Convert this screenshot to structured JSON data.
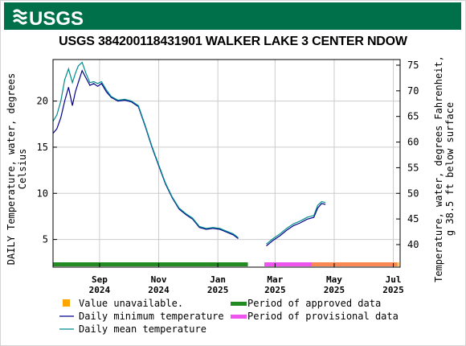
{
  "banner": {
    "logo_text": "USGS",
    "color": "#00704a"
  },
  "chart_data": {
    "type": "line",
    "title": "USGS 384200118431901 WALKER LAKE 3 CENTER NDOW",
    "ylabel": [
      "DAILY Temperature, water, degrees",
      "Celsius"
    ],
    "y2label": [
      "Temperature, water, degrees Fahrenheit,",
      "g 38.5 ft below surface"
    ],
    "ylim": [
      2,
      24.5
    ],
    "y2lim": [
      35.6,
      76.1
    ],
    "xlim": [
      "2024-07-15",
      "2025-07-08"
    ],
    "yticks": [
      5,
      10,
      15,
      20
    ],
    "y2ticks": [
      40,
      45,
      50,
      55,
      60,
      65,
      70,
      75
    ],
    "xticks": [
      {
        "date": "2024-09-01",
        "line1": "Sep",
        "line2": "2024"
      },
      {
        "date": "2024-11-01",
        "line1": "Nov",
        "line2": "2024"
      },
      {
        "date": "2025-01-01",
        "line1": "Jan",
        "line2": "2025"
      },
      {
        "date": "2025-03-01",
        "line1": "Mar",
        "line2": "2025"
      },
      {
        "date": "2025-05-01",
        "line1": "May",
        "line2": "2025"
      },
      {
        "date": "2025-07-01",
        "line1": "Jul",
        "line2": "2025"
      }
    ],
    "grid": true,
    "series": [
      {
        "name": "Daily minimum temperature",
        "color": "#00008b",
        "x": [
          "2024-07-15",
          "2024-07-19",
          "2024-07-23",
          "2024-07-27",
          "2024-07-31",
          "2024-08-04",
          "2024-08-07",
          "2024-08-10",
          "2024-08-14",
          "2024-08-18",
          "2024-08-22",
          "2024-08-26",
          "2024-08-30",
          "2024-09-03",
          "2024-09-08",
          "2024-09-13",
          "2024-09-20",
          "2024-09-27",
          "2024-10-04",
          "2024-10-11",
          "2024-10-18",
          "2024-10-25",
          "2024-11-01",
          "2024-11-08",
          "2024-11-15",
          "2024-11-22",
          "2024-11-29",
          "2024-12-06",
          "2024-12-13",
          "2024-12-20",
          "2024-12-27",
          "2025-01-03",
          "2025-01-10",
          "2025-01-17",
          "2025-01-22",
          null,
          "2025-02-20",
          "2025-02-27",
          "2025-03-06",
          "2025-03-13",
          "2025-03-20",
          "2025-03-27",
          "2025-04-03",
          "2025-04-10",
          "2025-04-14",
          "2025-04-18",
          "2025-04-22"
        ],
        "values": [
          16.5,
          17.0,
          18.2,
          20.0,
          21.5,
          19.5,
          21.0,
          22.0,
          23.3,
          22.5,
          21.7,
          21.9,
          21.6,
          21.9,
          21.0,
          20.4,
          20.0,
          20.1,
          19.9,
          19.4,
          17.3,
          15.0,
          13.0,
          11.0,
          9.5,
          8.3,
          7.7,
          7.2,
          6.3,
          6.1,
          6.2,
          6.1,
          5.8,
          5.5,
          5.1,
          null,
          4.3,
          4.9,
          5.4,
          6.0,
          6.5,
          6.8,
          7.2,
          7.4,
          8.4,
          8.9,
          8.8
        ]
      },
      {
        "name": "Daily mean temperature",
        "color": "#008b8b",
        "x": [
          "2024-07-15",
          "2024-07-19",
          "2024-07-23",
          "2024-07-27",
          "2024-07-31",
          "2024-08-04",
          "2024-08-07",
          "2024-08-10",
          "2024-08-14",
          "2024-08-18",
          "2024-08-22",
          "2024-08-26",
          "2024-08-30",
          "2024-09-03",
          "2024-09-08",
          "2024-09-13",
          "2024-09-20",
          "2024-09-27",
          "2024-10-04",
          "2024-10-11",
          "2024-10-18",
          "2024-10-25",
          "2024-11-01",
          "2024-11-08",
          "2024-11-15",
          "2024-11-22",
          "2024-11-29",
          "2024-12-06",
          "2024-12-13",
          "2024-12-20",
          "2024-12-27",
          "2025-01-03",
          "2025-01-10",
          "2025-01-17",
          "2025-01-22",
          null,
          "2025-02-20",
          "2025-02-27",
          "2025-03-06",
          "2025-03-13",
          "2025-03-20",
          "2025-03-27",
          "2025-04-03",
          "2025-04-10",
          "2025-04-14",
          "2025-04-18",
          "2025-04-22"
        ],
        "values": [
          17.8,
          18.5,
          20.0,
          22.3,
          23.5,
          22.0,
          23.0,
          23.8,
          24.2,
          23.0,
          22.0,
          22.1,
          21.9,
          22.1,
          21.2,
          20.5,
          20.1,
          20.2,
          20.0,
          19.5,
          17.4,
          15.1,
          13.1,
          11.1,
          9.6,
          8.4,
          7.8,
          7.3,
          6.4,
          6.2,
          6.3,
          6.2,
          5.9,
          5.6,
          5.2,
          null,
          4.5,
          5.1,
          5.6,
          6.2,
          6.7,
          7.0,
          7.4,
          7.6,
          8.7,
          9.1,
          9.0
        ]
      }
    ],
    "periods": [
      {
        "name": "Period of approved data",
        "color": "#228b22",
        "start": "2024-07-15",
        "end": "2025-02-01"
      },
      {
        "name": "Period of provisional data",
        "color": "#ee55ee",
        "start": "2025-02-18",
        "end": "2025-07-05"
      },
      {
        "name": "Value unavailable.",
        "color": "#ffa500",
        "start": "2025-04-08",
        "end": "2025-07-07",
        "opacity": 0.65
      }
    ],
    "legend": [
      {
        "label": "Value unavailable.",
        "kind": "square",
        "color": "#ffa500"
      },
      {
        "label": "Period of approved data",
        "kind": "thick",
        "color": "#228b22"
      },
      {
        "label": "Daily minimum temperature",
        "kind": "line",
        "color": "#00008b"
      },
      {
        "label": "Period of provisional data",
        "kind": "thick",
        "color": "#ee55ee"
      },
      {
        "label": "Daily mean temperature",
        "kind": "line",
        "color": "#008b8b"
      }
    ],
    "legend_position": "bottom"
  }
}
